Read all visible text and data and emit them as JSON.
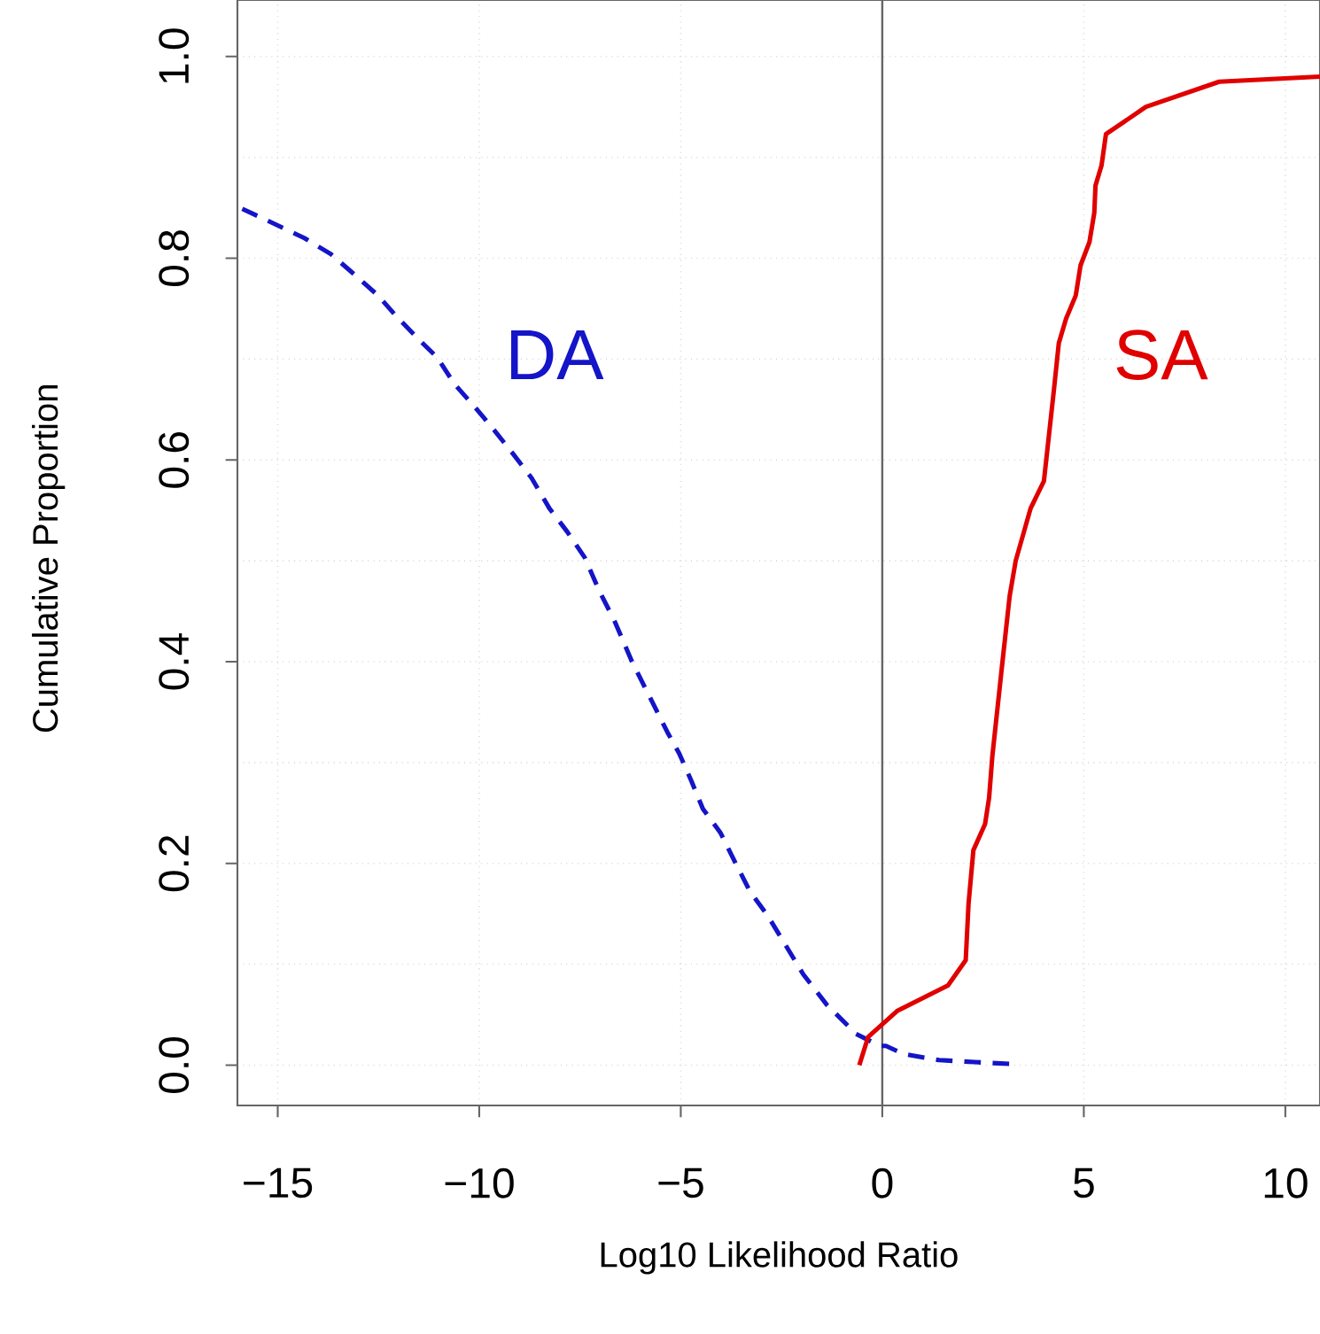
{
  "chart_data": {
    "type": "line",
    "xlabel": "Log10 Likelihood Ratio",
    "ylabel": "Cumulative Proportion",
    "xlim": [
      -16,
      10.86
    ],
    "ylim": [
      -0.04,
      1.056
    ],
    "xticks": [
      {
        "value": -15,
        "label": "−15"
      },
      {
        "value": -10,
        "label": "−10"
      },
      {
        "value": -5,
        "label": "−5"
      },
      0,
      5,
      10
    ],
    "yticks": [
      {
        "value": 0,
        "label": "0.0"
      },
      {
        "value": 0.1,
        "label": null
      },
      0.2,
      {
        "value": 0.3,
        "label": null
      },
      0.4,
      {
        "value": 0.5,
        "label": null
      },
      0.6,
      {
        "value": 0.7,
        "label": null
      },
      0.8,
      {
        "value": 0.9,
        "label": null
      },
      {
        "value": 1,
        "label": "1.0"
      }
    ],
    "grid": true,
    "marker": "none",
    "ref_lines": [
      {
        "axis": "x",
        "value": 0,
        "color": "#666666",
        "line_style": "solid"
      }
    ],
    "series": [
      {
        "name": "DA",
        "color": "#1414c8",
        "line_style": "dashed",
        "x": [
          -15.88,
          -15.08,
          -14.34,
          -13.68,
          -13.1,
          -12.51,
          -12.07,
          -11.49,
          -11.05,
          -10.61,
          -10.1,
          -9.66,
          -9.14,
          -8.7,
          -8.26,
          -7.82,
          -7.38,
          -7.02,
          -6.65,
          -6.21,
          -5.77,
          -5.33,
          -5.04,
          -4.75,
          -4.45,
          -4.01,
          -3.65,
          -3.28,
          -2.84,
          -2.4,
          -1.96,
          -1.38,
          -0.65,
          -0.06,
          0.09,
          0.53,
          1.41,
          2.29,
          3.24
        ],
        "values": [
          0.849,
          0.834,
          0.82,
          0.804,
          0.784,
          0.763,
          0.743,
          0.719,
          0.702,
          0.675,
          0.652,
          0.631,
          0.605,
          0.582,
          0.552,
          0.529,
          0.503,
          0.47,
          0.441,
          0.4,
          0.365,
          0.33,
          0.309,
          0.283,
          0.254,
          0.23,
          0.201,
          0.172,
          0.148,
          0.119,
          0.09,
          0.06,
          0.031,
          0.019,
          0.019,
          0.011,
          0.005,
          0.003,
          0.001
        ]
      },
      {
        "name": "SA",
        "color": "#e00000",
        "line_style": "solid",
        "x": [
          -0.57,
          -0.35,
          0.38,
          1.63,
          2.07,
          2.14,
          2.26,
          2.55,
          2.65,
          2.73,
          2.95,
          3.16,
          3.31,
          3.68,
          4.01,
          4.26,
          4.38,
          4.56,
          4.8,
          4.92,
          5.14,
          5.26,
          5.29,
          5.44,
          5.55,
          6.54,
          8.36,
          10.86
        ],
        "values": [
          0,
          0.028,
          0.054,
          0.079,
          0.104,
          0.16,
          0.213,
          0.239,
          0.265,
          0.306,
          0.388,
          0.465,
          0.5,
          0.552,
          0.579,
          0.67,
          0.716,
          0.74,
          0.763,
          0.793,
          0.816,
          0.845,
          0.872,
          0.892,
          0.923,
          0.95,
          0.975,
          0.98
        ]
      }
    ]
  }
}
